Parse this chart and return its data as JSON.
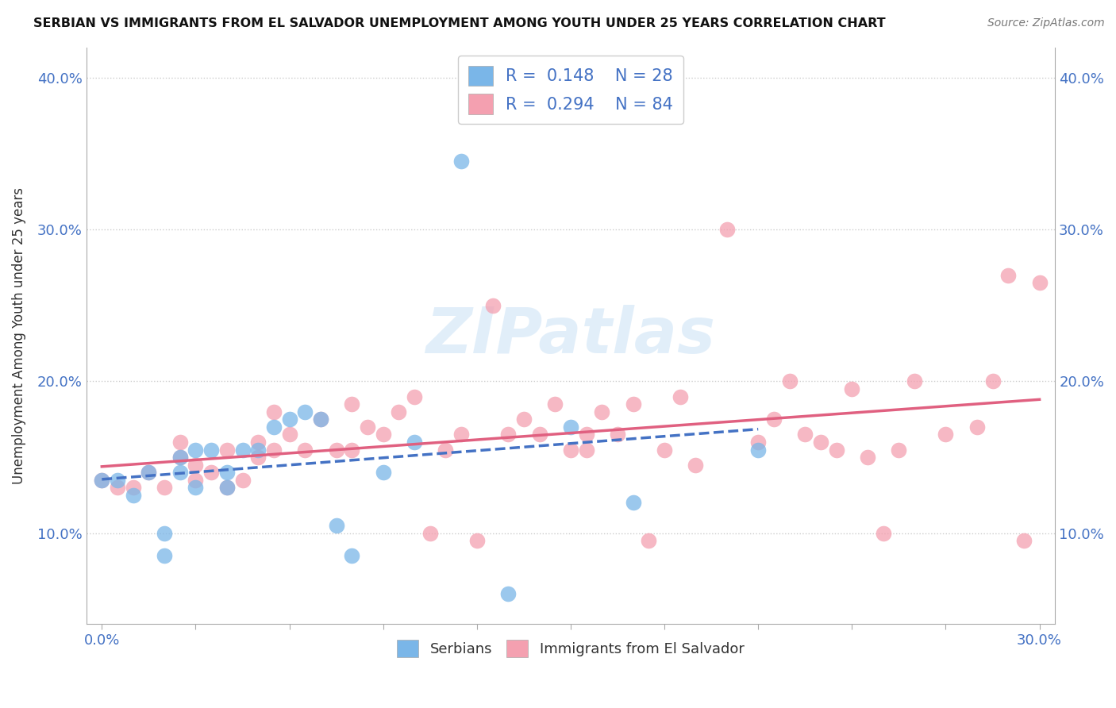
{
  "title": "SERBIAN VS IMMIGRANTS FROM EL SALVADOR UNEMPLOYMENT AMONG YOUTH UNDER 25 YEARS CORRELATION CHART",
  "source": "Source: ZipAtlas.com",
  "ylabel": "Unemployment Among Youth under 25 years",
  "xlim": [
    -0.005,
    0.305
  ],
  "ylim": [
    0.04,
    0.42
  ],
  "yticks": [
    0.1,
    0.2,
    0.3,
    0.4
  ],
  "ytick_labels": [
    "10.0%",
    "20.0%",
    "30.0%",
    "40.0%"
  ],
  "xticks": [
    0.0,
    0.03,
    0.06,
    0.09,
    0.12,
    0.15,
    0.18,
    0.21,
    0.24,
    0.27,
    0.3
  ],
  "color_serbian": "#7ab6e8",
  "color_el_salvador": "#f4a0b0",
  "line_color_serbian": "#4472c4",
  "line_color_el_salvador": "#e06080",
  "background_color": "#ffffff",
  "grid_color": "#cccccc",
  "serbian_x": [
    0.0,
    0.005,
    0.01,
    0.015,
    0.02,
    0.02,
    0.025,
    0.025,
    0.03,
    0.03,
    0.035,
    0.04,
    0.04,
    0.045,
    0.05,
    0.055,
    0.06,
    0.065,
    0.07,
    0.08,
    0.09,
    0.1,
    0.115,
    0.13,
    0.15,
    0.17,
    0.21,
    0.075
  ],
  "serbian_y": [
    0.135,
    0.135,
    0.125,
    0.14,
    0.085,
    0.1,
    0.14,
    0.15,
    0.13,
    0.155,
    0.155,
    0.13,
    0.14,
    0.155,
    0.155,
    0.17,
    0.175,
    0.18,
    0.175,
    0.085,
    0.14,
    0.16,
    0.345,
    0.06,
    0.17,
    0.12,
    0.155,
    0.105
  ],
  "el_salvador_x": [
    0.0,
    0.005,
    0.01,
    0.015,
    0.02,
    0.025,
    0.025,
    0.03,
    0.03,
    0.035,
    0.04,
    0.04,
    0.045,
    0.05,
    0.05,
    0.055,
    0.055,
    0.06,
    0.065,
    0.07,
    0.075,
    0.08,
    0.08,
    0.085,
    0.09,
    0.095,
    0.1,
    0.105,
    0.11,
    0.115,
    0.12,
    0.13,
    0.135,
    0.14,
    0.145,
    0.15,
    0.155,
    0.16,
    0.165,
    0.17,
    0.175,
    0.18,
    0.19,
    0.2,
    0.21,
    0.22,
    0.23,
    0.24,
    0.25,
    0.26,
    0.27,
    0.28,
    0.285,
    0.29,
    0.295,
    0.3,
    0.125,
    0.155,
    0.185,
    0.215,
    0.225,
    0.235,
    0.245,
    0.255
  ],
  "el_salvador_y": [
    0.135,
    0.13,
    0.13,
    0.14,
    0.13,
    0.15,
    0.16,
    0.145,
    0.135,
    0.14,
    0.155,
    0.13,
    0.135,
    0.15,
    0.16,
    0.155,
    0.18,
    0.165,
    0.155,
    0.175,
    0.155,
    0.185,
    0.155,
    0.17,
    0.165,
    0.18,
    0.19,
    0.1,
    0.155,
    0.165,
    0.095,
    0.165,
    0.175,
    0.165,
    0.185,
    0.155,
    0.165,
    0.18,
    0.165,
    0.185,
    0.095,
    0.155,
    0.145,
    0.3,
    0.16,
    0.2,
    0.16,
    0.195,
    0.1,
    0.2,
    0.165,
    0.17,
    0.2,
    0.27,
    0.095,
    0.265,
    0.25,
    0.155,
    0.19,
    0.175,
    0.165,
    0.155,
    0.15,
    0.155
  ]
}
